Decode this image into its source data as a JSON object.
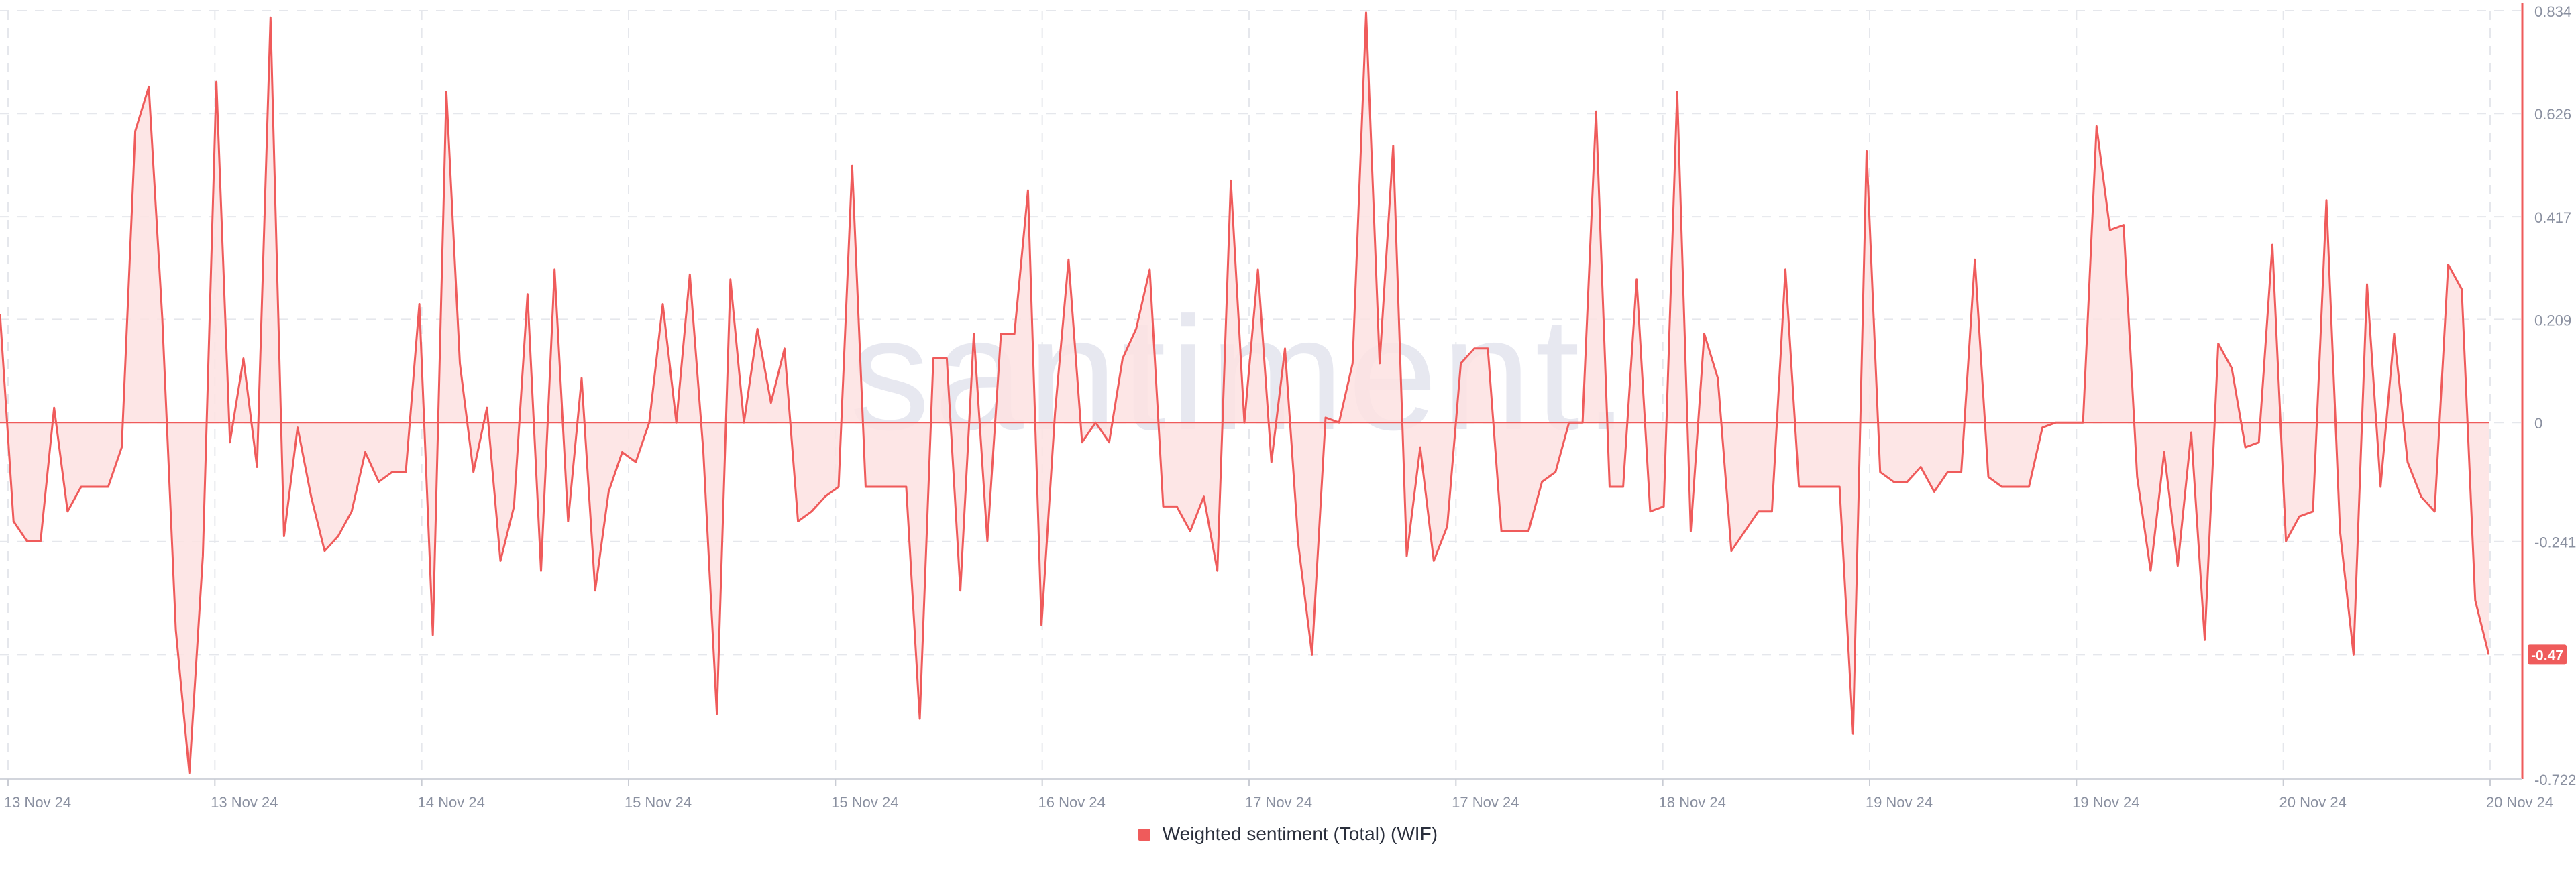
{
  "watermark": "santiment.",
  "legend": {
    "label": "Weighted sentiment (Total) (WIF)"
  },
  "colors": {
    "line": "#ef5b5b",
    "fill": "#fde2e2",
    "grid": "#e5e7ec",
    "axis_text": "#8a90a0",
    "badge": "#ef5b5b",
    "watermark": "#e7e8f0"
  },
  "chart_data": {
    "type": "area",
    "series_name": "Weighted sentiment (Total) (WIF)",
    "y_ticks": [
      "0.834",
      "0.626",
      "0.417",
      "0.209",
      "0",
      "-0.241",
      "-0.47",
      "-0.722"
    ],
    "y_tick_values": [
      0.834,
      0.626,
      0.417,
      0.209,
      0,
      -0.241,
      -0.47,
      -0.722
    ],
    "ylim": [
      -0.722,
      0.834
    ],
    "last_value_label": "-0.47",
    "x_ticks": [
      "13 Nov 24",
      "13 Nov 24",
      "14 Nov 24",
      "15 Nov 24",
      "15 Nov 24",
      "16 Nov 24",
      "17 Nov 24",
      "17 Nov 24",
      "18 Nov 24",
      "19 Nov 24",
      "19 Nov 24",
      "20 Nov 24",
      "20 Nov 24"
    ],
    "grid": true,
    "values": [
      0.22,
      -0.2,
      -0.24,
      -0.24,
      0.03,
      -0.18,
      -0.13,
      -0.13,
      -0.13,
      -0.05,
      0.59,
      0.68,
      0.21,
      -0.42,
      -0.71,
      -0.27,
      0.69,
      -0.04,
      0.13,
      -0.09,
      0.82,
      -0.23,
      -0.01,
      -0.15,
      -0.26,
      -0.23,
      -0.18,
      -0.06,
      -0.12,
      -0.1,
      -0.1,
      0.24,
      -0.43,
      0.67,
      0.12,
      -0.1,
      0.03,
      -0.28,
      -0.17,
      0.26,
      -0.3,
      0.31,
      -0.2,
      0.09,
      -0.34,
      -0.14,
      -0.06,
      -0.08,
      0,
      0.24,
      0,
      0.3,
      -0.06,
      -0.59,
      0.29,
      0,
      0.19,
      0.04,
      0.15,
      -0.2,
      -0.18,
      -0.15,
      -0.13,
      0.52,
      -0.13,
      -0.13,
      -0.13,
      -0.13,
      -0.6,
      0.13,
      0.13,
      -0.34,
      0.18,
      -0.24,
      0.18,
      0.18,
      0.47,
      -0.41,
      0.02,
      0.33,
      -0.04,
      0,
      -0.04,
      0.13,
      0.19,
      0.31,
      -0.17,
      -0.17,
      -0.22,
      -0.15,
      -0.3,
      0.49,
      0,
      0.31,
      -0.08,
      0.15,
      -0.25,
      -0.47,
      0.01,
      0,
      0.12,
      0.83,
      0.12,
      0.56,
      -0.27,
      -0.05,
      -0.28,
      -0.21,
      0.12,
      0.15,
      0.15,
      -0.22,
      -0.22,
      -0.22,
      -0.12,
      -0.1,
      0,
      0,
      0.63,
      -0.13,
      -0.13,
      0.29,
      -0.18,
      -0.17,
      0.67,
      -0.22,
      0.18,
      0.09,
      -0.26,
      -0.22,
      -0.18,
      -0.18,
      0.31,
      -0.13,
      -0.13,
      -0.13,
      -0.13,
      -0.63,
      0.55,
      -0.1,
      -0.12,
      -0.12,
      -0.09,
      -0.14,
      -0.1,
      -0.1,
      0.33,
      -0.11,
      -0.13,
      -0.13,
      -0.13,
      -0.01,
      0,
      0,
      0,
      0.6,
      0.39,
      0.4,
      -0.11,
      -0.3,
      -0.06,
      -0.29,
      -0.02,
      -0.44,
      0.16,
      0.11,
      -0.05,
      -0.04,
      0.36,
      -0.24,
      -0.19,
      -0.18,
      0.45,
      -0.22,
      -0.47,
      0.28,
      -0.13,
      0.18,
      -0.08,
      -0.15,
      -0.18,
      0.32,
      0.27,
      -0.36,
      -0.47
    ]
  }
}
